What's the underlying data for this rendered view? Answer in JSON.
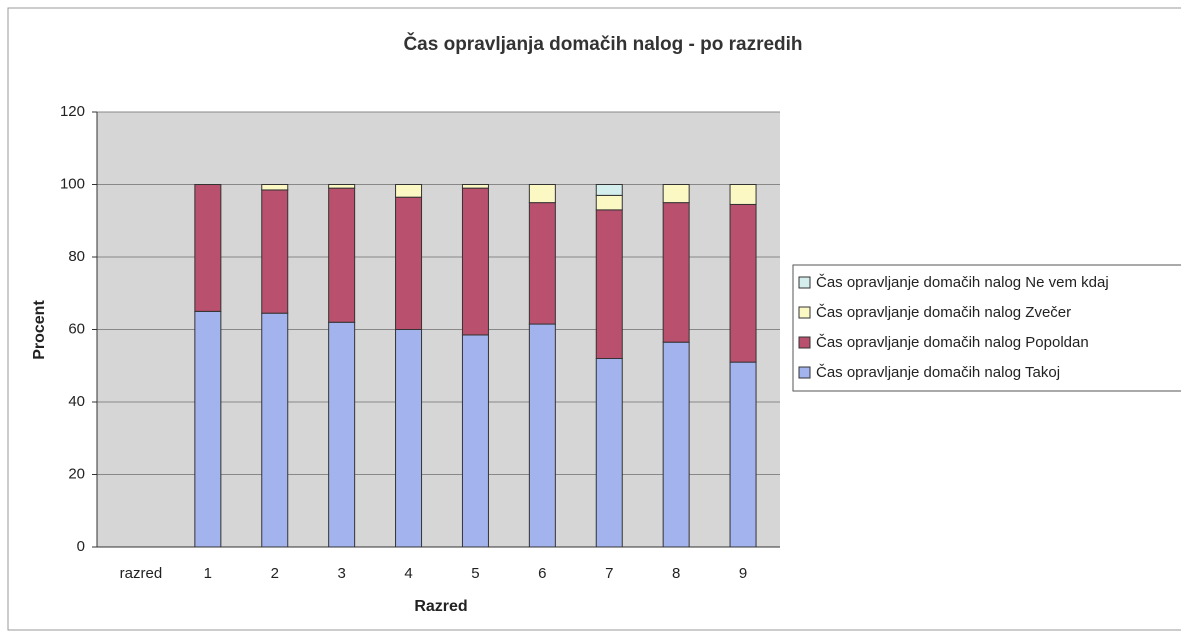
{
  "chart_data": {
    "type": "stacked_bar",
    "title": "Čas opravljanja domačih nalog - po razredih",
    "x_label": "Razred",
    "y_label": "Procent",
    "categories": [
      "razred",
      "1",
      "2",
      "3",
      "4",
      "5",
      "6",
      "7",
      "8",
      "9"
    ],
    "series": [
      {
        "name": "Čas opravljanje domačih nalog Takoj",
        "color": "#a3b3ee",
        "values": [
          null,
          65,
          64.5,
          62,
          60,
          58.5,
          61.5,
          52,
          56.5,
          51
        ]
      },
      {
        "name": "Čas opravljanje domačih nalog Popoldan",
        "color": "#b9506e",
        "values": [
          null,
          35,
          34,
          37,
          36.5,
          40.5,
          33.5,
          41,
          38.5,
          43.5
        ]
      },
      {
        "name": "Čas opravljanje domačih nalog Zvečer",
        "color": "#fbf8c4",
        "values": [
          null,
          0,
          1.5,
          1,
          3.5,
          1,
          5,
          4,
          5,
          5.5
        ]
      },
      {
        "name": "Čas opravljanje domačih nalog Ne vem kdaj",
        "color": "#d4eeee",
        "values": [
          null,
          0,
          0,
          0,
          0,
          0,
          0,
          3,
          0,
          0
        ]
      }
    ],
    "ylim": [
      0,
      120
    ],
    "yticks": [
      0,
      20,
      40,
      60,
      80,
      100,
      120
    ],
    "grid": true,
    "legend": "right"
  }
}
